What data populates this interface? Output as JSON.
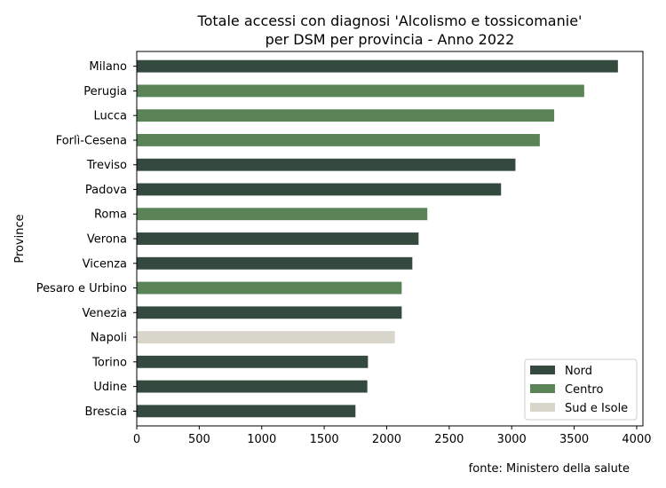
{
  "chart_data": {
    "type": "bar",
    "orientation": "horizontal",
    "title_line1": "Totale accessi con diagnosi 'Alcolismo e tossicomanie'",
    "title_line2": "per DSM per provincia - Anno 2022",
    "xlabel": "",
    "ylabel": "Province",
    "xlim": [
      0,
      4050
    ],
    "xticks": [
      "0",
      "500",
      "1000",
      "1500",
      "2000",
      "2500",
      "3000",
      "3500",
      "4000"
    ],
    "xtick_values": [
      0,
      500,
      1000,
      1500,
      2000,
      2500,
      3000,
      3500,
      4000
    ],
    "grid": false,
    "legend_position": "bottom-right",
    "legend": [
      {
        "name": "Nord",
        "color": "#344a3f"
      },
      {
        "name": "Centro",
        "color": "#5a8458"
      },
      {
        "name": "Sud e Isole",
        "color": "#d8d6cb"
      }
    ],
    "categories": [
      "Milano",
      "Perugia",
      "Lucca",
      "Forlì-Cesena",
      "Treviso",
      "Padova",
      "Roma",
      "Verona",
      "Vicenza",
      "Pesaro e Urbino",
      "Venezia",
      "Napoli",
      "Torino",
      "Udine",
      "Brescia"
    ],
    "values": [
      3850,
      3580,
      3340,
      3225,
      3030,
      2915,
      2325,
      2255,
      2205,
      2120,
      2120,
      2065,
      1850,
      1845,
      1750
    ],
    "groups": [
      "Nord",
      "Centro",
      "Centro",
      "Centro",
      "Nord",
      "Nord",
      "Centro",
      "Nord",
      "Nord",
      "Centro",
      "Nord",
      "Sud e Isole",
      "Nord",
      "Nord",
      "Nord"
    ],
    "source_note": "fonte: Ministero della salute"
  }
}
